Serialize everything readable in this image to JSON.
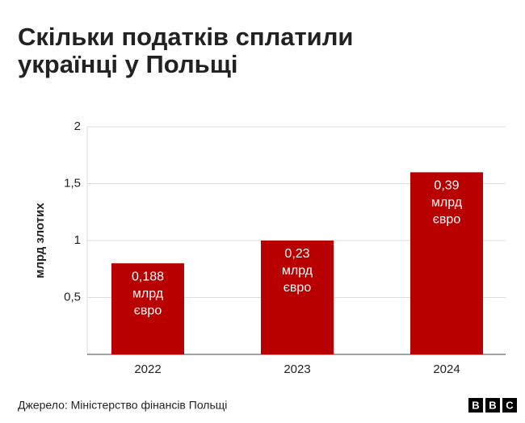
{
  "chart_data": {
    "type": "bar",
    "title": [
      "Скільки податків сплатили",
      "українці у Польщі"
    ],
    "y_label": "млрд злотих",
    "categories": [
      "2022",
      "2023",
      "2024"
    ],
    "values": [
      0.8,
      1.0,
      1.6
    ],
    "bar_labels": [
      [
        "0,188",
        "млрд",
        "євро"
      ],
      [
        "0,23",
        "млрд",
        "євро"
      ],
      [
        "0,39",
        "млрд",
        "євро"
      ]
    ],
    "color": "#b80000",
    "ylim": [
      0,
      2
    ],
    "yticks": [
      {
        "value": 0.5,
        "label": "0,5"
      },
      1,
      {
        "value": 1.5,
        "label": "1,5"
      },
      2
    ],
    "grid": true,
    "source": "Джерело: Міністерство фінансів Польщі",
    "logo": [
      "B",
      "B",
      "C"
    ]
  }
}
